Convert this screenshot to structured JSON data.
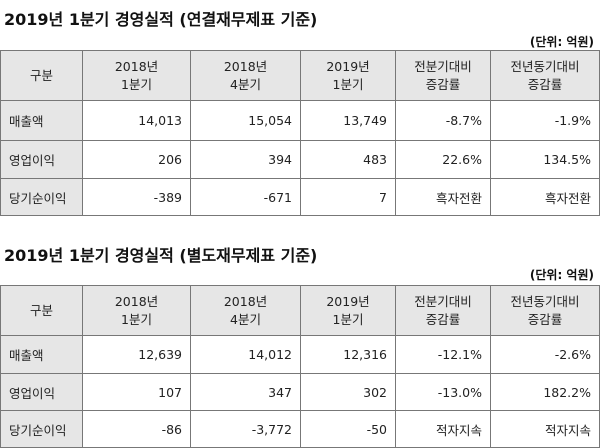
{
  "sections": [
    {
      "title": "2019년 1분기 경영실적 (연결재무제표 기준)",
      "unit": "(단위: 억원)",
      "table": {
        "header": [
          [
            "구분"
          ],
          [
            "2018년",
            "1분기"
          ],
          [
            "2018년",
            "4분기"
          ],
          [
            "2019년",
            "1분기"
          ],
          [
            "전분기대비",
            "증감률"
          ],
          [
            "전년동기대비",
            "증감률"
          ]
        ],
        "rows": [
          [
            "매출액",
            "14,013",
            "15,054",
            "13,749",
            "-8.7%",
            "-1.9%"
          ],
          [
            "영업이익",
            "206",
            "394",
            "483",
            "22.6%",
            "134.5%"
          ],
          [
            "당기순이익",
            "-389",
            "-671",
            "7",
            "흑자전환",
            "흑자전환"
          ]
        ]
      }
    },
    {
      "title": "2019년 1분기 경영실적 (별도재무제표 기준)",
      "unit": "(단위: 억원)",
      "table": {
        "header": [
          [
            "구분"
          ],
          [
            "2018년",
            "1분기"
          ],
          [
            "2018년",
            "4분기"
          ],
          [
            "2019년",
            "1분기"
          ],
          [
            "전분기대비",
            "증감률"
          ],
          [
            "전년동기대비",
            "증감률"
          ]
        ],
        "rows": [
          [
            "매출액",
            "12,639",
            "14,012",
            "12,316",
            "-12.1%",
            "-2.6%"
          ],
          [
            "영업이익",
            "107",
            "347",
            "302",
            "-13.0%",
            "182.2%"
          ],
          [
            "당기순이익",
            "-86",
            "-3,772",
            "-50",
            "적자지속",
            "적자지속"
          ]
        ]
      }
    }
  ]
}
